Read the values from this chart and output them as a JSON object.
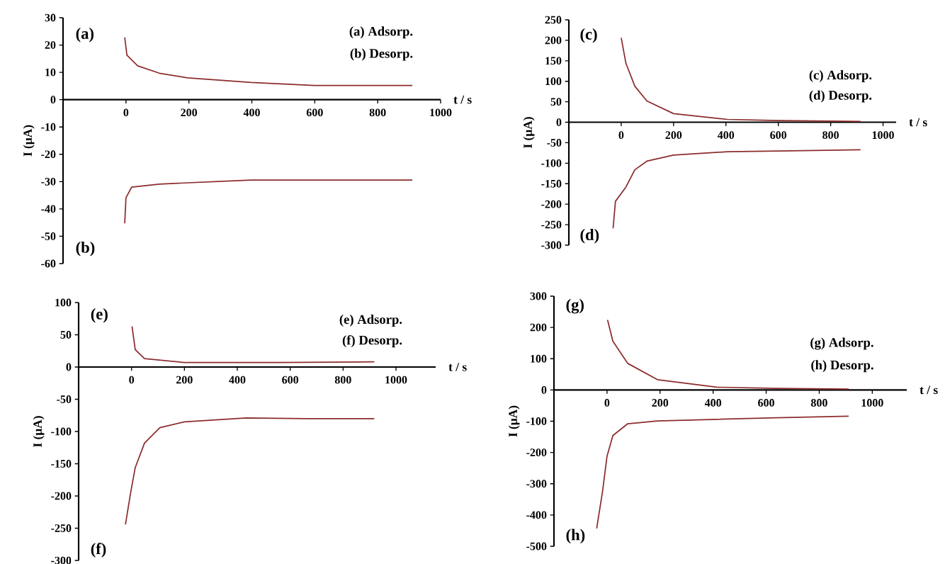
{
  "chart_data": [
    {
      "type": "line",
      "xlabel": "t / s",
      "ylabel": "I (µA)",
      "xlim": [
        -200,
        1000
      ],
      "ylim": [
        -60,
        30
      ],
      "xticks": [
        0,
        200,
        400,
        600,
        800,
        1000
      ],
      "yticks": [
        -60,
        -50,
        -40,
        -30,
        -20,
        -10,
        0,
        10,
        20,
        30
      ],
      "annotations": [
        "(a)",
        "(b)",
        "(a) Adsorp.",
        "(b) Desorp."
      ],
      "series": [
        {
          "color": "#8c2c2c",
          "x": [
            -4,
            3,
            37,
            106,
            196,
            398,
            598,
            910
          ],
          "values": [
            22.8,
            16.3,
            12.4,
            9.7,
            8,
            6.3,
            5.2,
            5.2
          ]
        },
        {
          "color": "#8c2c2c",
          "x": [
            -4,
            0,
            18,
            106,
            398,
            910
          ],
          "values": [
            -45.3,
            -35.9,
            -32,
            -30.9,
            -29.4,
            -29.4
          ]
        }
      ]
    },
    {
      "type": "line",
      "xlabel": "t / s",
      "ylabel": "I (µA)",
      "xlim": [
        -200,
        1050
      ],
      "ylim": [
        -300,
        250
      ],
      "xticks": [
        0,
        200,
        400,
        600,
        800,
        1000
      ],
      "yticks": [
        -300,
        -250,
        -200,
        -150,
        -100,
        -50,
        0,
        50,
        100,
        150,
        200,
        250
      ],
      "annotations": [
        "(c)",
        "(d)",
        "(c) Adsorp.",
        "(d) Desorp."
      ],
      "series": [
        {
          "color": "#8c2c2c",
          "x": [
            0,
            18,
            52,
            98,
            200,
            406,
            600,
            914
          ],
          "values": [
            206,
            144,
            88,
            52,
            21,
            7,
            4,
            2
          ]
        },
        {
          "color": "#8c2c2c",
          "x": [
            -31,
            -22,
            18,
            52,
            98,
            200,
            406,
            600,
            914
          ],
          "values": [
            -259,
            -193,
            -158,
            -116,
            -95,
            -80,
            -72,
            -70,
            -67
          ]
        }
      ]
    },
    {
      "type": "line",
      "xlabel": "t / s",
      "ylabel": "I (µA)",
      "xlim": [
        -200,
        1150
      ],
      "ylim": [
        -300,
        100
      ],
      "xticks": [
        0,
        200,
        400,
        600,
        800,
        1000
      ],
      "yticks": [
        -300,
        -250,
        -200,
        -150,
        -100,
        -50,
        0,
        50,
        100
      ],
      "annotations": [
        "(e)",
        "(f)",
        "(e) Adsorp.",
        "(f) Desorp."
      ],
      "series": [
        {
          "color": "#8c2c2c",
          "x": [
            2,
            14,
            49,
            200,
            550,
            918
          ],
          "values": [
            63,
            27,
            13,
            7,
            7,
            8
          ]
        },
        {
          "color": "#8c2c2c",
          "x": [
            -23,
            -3,
            14,
            49,
            107,
            200,
            434,
            667,
            918
          ],
          "values": [
            -244,
            -194,
            -156,
            -118,
            -94,
            -85,
            -79,
            -80,
            -80
          ]
        }
      ]
    },
    {
      "type": "line",
      "xlabel": "t / s",
      "ylabel": "I (µA)",
      "xlim": [
        -200,
        1130
      ],
      "ylim": [
        -500,
        300
      ],
      "xticks": [
        0,
        200,
        400,
        600,
        800,
        1000
      ],
      "yticks": [
        -500,
        -400,
        -300,
        -200,
        -100,
        0,
        100,
        200,
        300
      ],
      "annotations": [
        "(g)",
        "(h)",
        "(g) Adsorp.",
        "(h) Desorp."
      ],
      "series": [
        {
          "color": "#8c2c2c",
          "x": [
            2,
            22,
            78,
            190,
            413,
            637,
            911
          ],
          "values": [
            224,
            156,
            85,
            33,
            9,
            5,
            3
          ]
        },
        {
          "color": "#8c2c2c",
          "x": [
            -39,
            -17,
            0,
            22,
            78,
            190,
            413,
            637,
            911
          ],
          "values": [
            -443,
            -325,
            -212,
            -146,
            -108,
            -99,
            -94,
            -89,
            -84
          ]
        }
      ]
    }
  ]
}
